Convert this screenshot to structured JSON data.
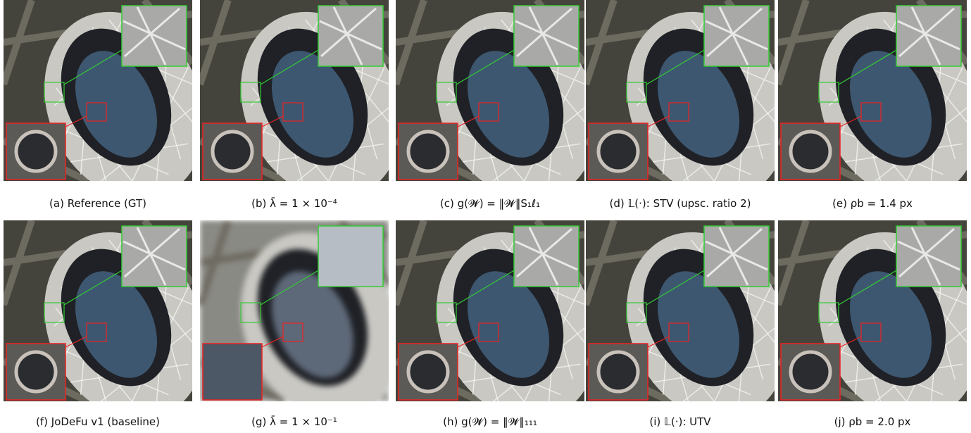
{
  "panels": [
    {
      "caption": "(a) Reference (GT)"
    },
    {
      "caption": "(b) λ̄ = 1 × 10⁻⁴"
    },
    {
      "caption": "(c) g(𝓦) = ‖𝓦‖S₁ℓ₁"
    },
    {
      "caption": "(d) 𝕃(·): STV (upsc. ratio 2)"
    },
    {
      "caption": "(e) ρb = 1.4 px"
    },
    {
      "caption": "(f) JoDeFu v1 (baseline)"
    },
    {
      "caption": "(g) λ̄ = 1 × 10⁻¹"
    },
    {
      "caption": "(h) g(𝓦) = ‖𝓦‖₁₁₁"
    },
    {
      "caption": "(i) 𝕃(·): UTV"
    },
    {
      "caption": "(j) ρb = 2.0 px"
    }
  ]
}
